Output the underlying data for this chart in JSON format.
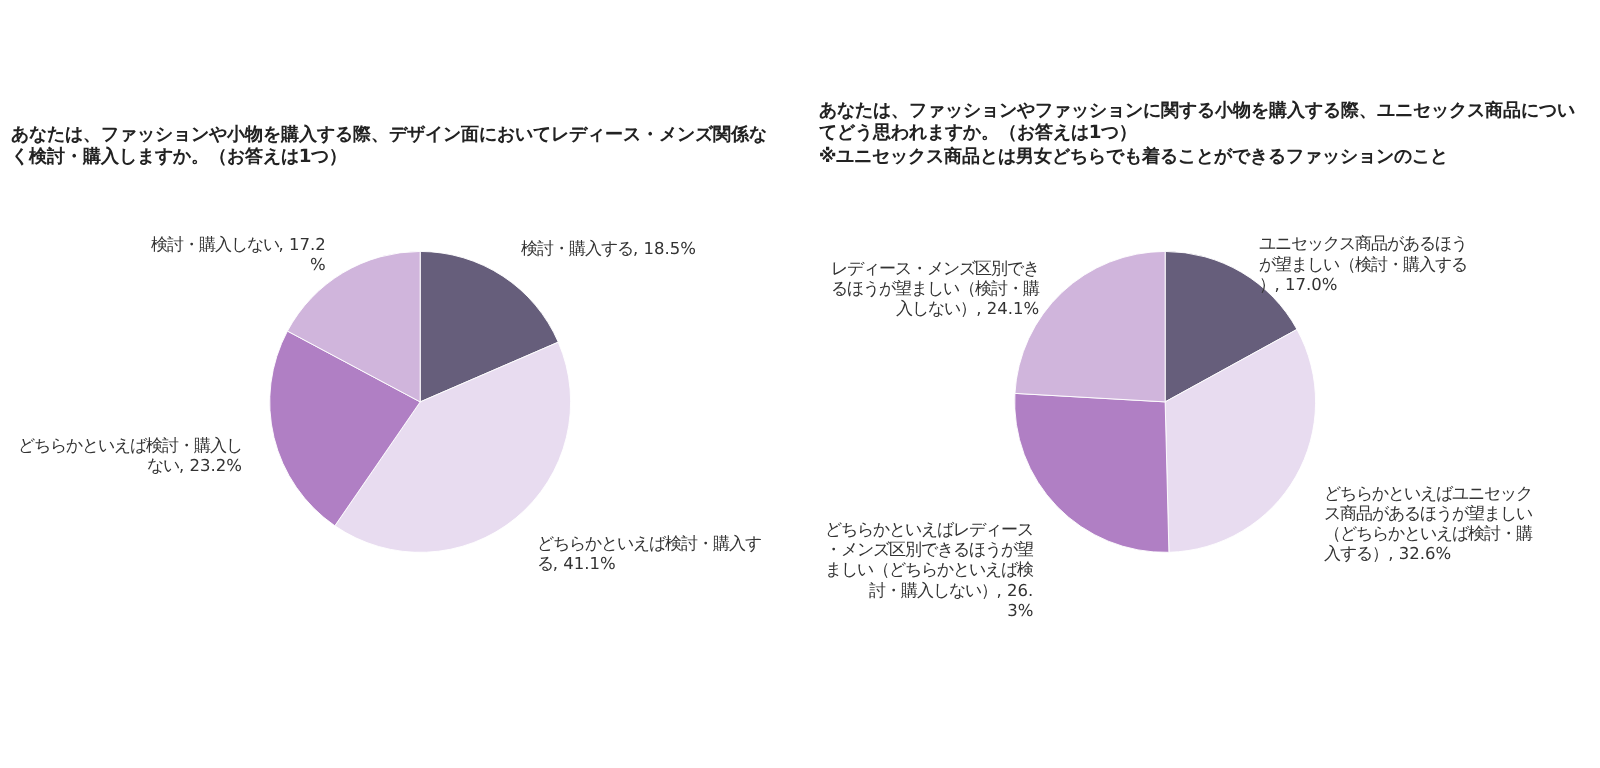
{
  "chart_data": [
    {
      "type": "pie",
      "title": "あなたは、ファッションや小物を購入する際、デザイン面においてレディース・メンズ関係なく検討・購入しますか。（お答えは1つ）",
      "categories": [
        "検討・購入する",
        "どちらかといえば検討・購入する",
        "どちらかといえば検討・購入しない",
        "検討・購入しない"
      ],
      "values": [
        18.5,
        41.1,
        23.2,
        17.2
      ],
      "value_labels": [
        "18.5%",
        "41.1%",
        "23.2%",
        "17.2%"
      ],
      "colors": [
        "#665e7b",
        "#e8dcf0",
        "#b07fc4",
        "#d0b5dc"
      ]
    },
    {
      "type": "pie",
      "title": "あなたは、ファッションやファッションに関する小物を購入する際、ユニセックス商品についてどう思われますか。（お答えは1つ）",
      "subtitle": "※ユニセックス商品とは男女どちらでも着ることができるファッションのこと",
      "categories": [
        "ユニセックス商品があるほうが望ましい（検討・購入する）",
        "どちらかといえばユニセックス商品があるほうが望ましい（どちらかといえば検討・購入する）",
        "どちらかといえばレディース・メンズ区別できるほうが望ましい（どちらかといえば検討・購入しない）",
        "レディース・メンズ区別できるほうが望ましい（検討・購入しない）"
      ],
      "values": [
        17.0,
        32.6,
        26.3,
        24.1
      ],
      "value_labels": [
        "17.0%",
        "32.6%",
        "26.3%",
        "24.1%"
      ],
      "colors": [
        "#665e7b",
        "#e8dcf0",
        "#b07fc4",
        "#d0b5dc"
      ]
    }
  ]
}
